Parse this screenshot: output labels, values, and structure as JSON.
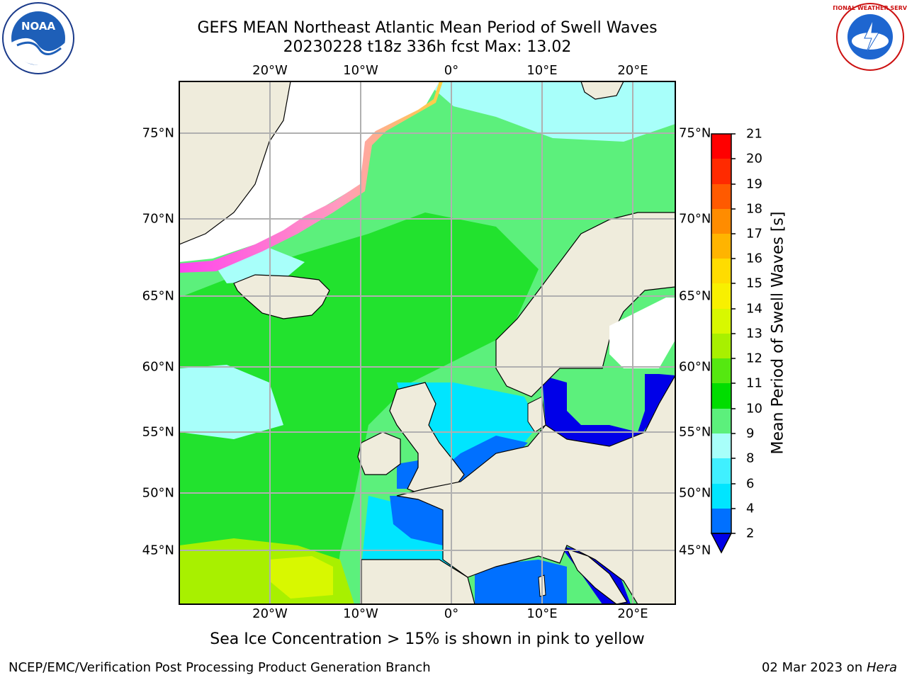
{
  "title": {
    "line1": "GEFS MEAN Northeast Atlantic Mean Period of Swell Waves",
    "line2": "20230228 t18z 336h fcst   Max: 13.02"
  },
  "axes": {
    "longitude_ticks": [
      "20°W",
      "10°W",
      "0°",
      "10°E",
      "20°E"
    ],
    "latitude_ticks": [
      "75°N",
      "70°N",
      "65°N",
      "60°N",
      "55°N",
      "50°N",
      "45°N"
    ]
  },
  "colorbar": {
    "label": "Mean Period of Swell Waves [s]",
    "ticks": [
      "2",
      "4",
      "6",
      "8",
      "9",
      "10",
      "11",
      "12",
      "13",
      "14",
      "15",
      "16",
      "17",
      "18",
      "19",
      "20",
      "21"
    ],
    "colors": [
      "#0000e8",
      "#0070ff",
      "#00e5ff",
      "#40f0ff",
      "#a8fffa",
      "#5cf07c",
      "#00dd00",
      "#55e810",
      "#a8f000",
      "#d8f800",
      "#f8f000",
      "#ffdc00",
      "#ffb400",
      "#ff8c00",
      "#ff5a00",
      "#ff2a00",
      "#ff0000"
    ]
  },
  "note": "Sea Ice Concentration > 15% is shown in pink to yellow",
  "footer": {
    "left": "NCEP/EMC/Verification Post Processing Product Generation Branch",
    "date": "02 Mar 2023 on ",
    "host": "Hera"
  },
  "logos": {
    "noaa_text": "NOAA",
    "nws_text": "NATIONAL WEATHER SERVICE"
  },
  "colors": {
    "land": "#efecdc",
    "ice_pink": "#ff44ee",
    "ice_yellow": "#ffd040",
    "ocean_green": "#5cf07c",
    "ocean_cyan": "#a8fffa",
    "grid": "#b0b0b0"
  }
}
